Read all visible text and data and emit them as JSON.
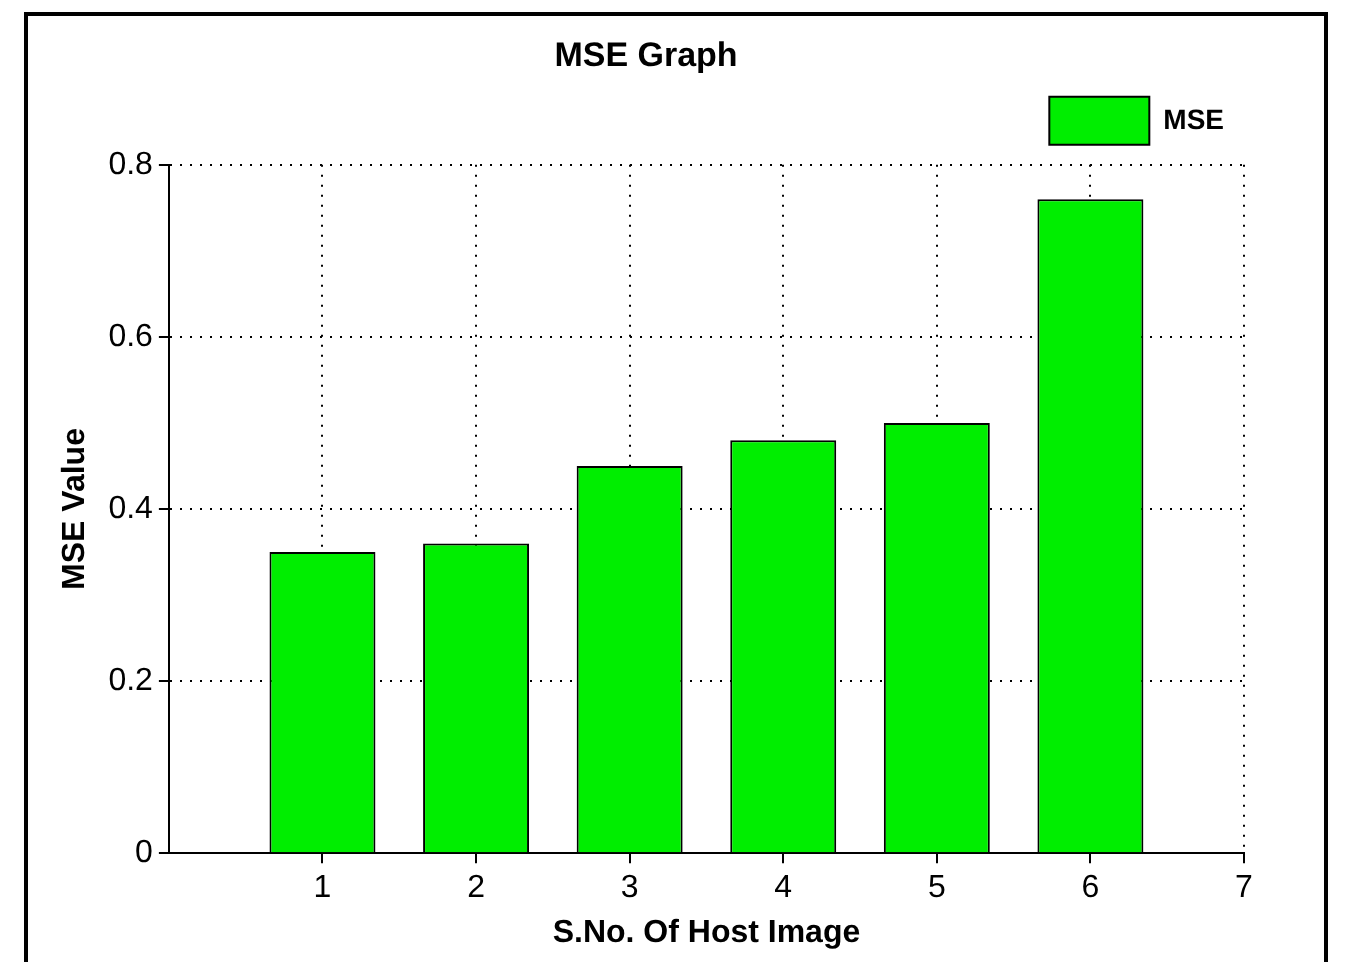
{
  "chart_data": {
    "type": "bar",
    "title": "MSE Graph",
    "xlabel": "S.No. Of Host Image",
    "ylabel": "MSE Value",
    "x": [
      1,
      2,
      3,
      4,
      5,
      6
    ],
    "series": [
      {
        "name": "MSE",
        "color": "#00ee00",
        "values": [
          0.35,
          0.36,
          0.45,
          0.48,
          0.5,
          0.76
        ]
      }
    ],
    "xlim": [
      0,
      7
    ],
    "xticks": [
      1,
      2,
      3,
      4,
      5,
      6,
      7
    ],
    "ylim": [
      0,
      0.8
    ],
    "yticks": [
      0,
      0.2,
      0.4,
      0.6,
      0.8
    ],
    "grid": true,
    "legend": "top right"
  }
}
